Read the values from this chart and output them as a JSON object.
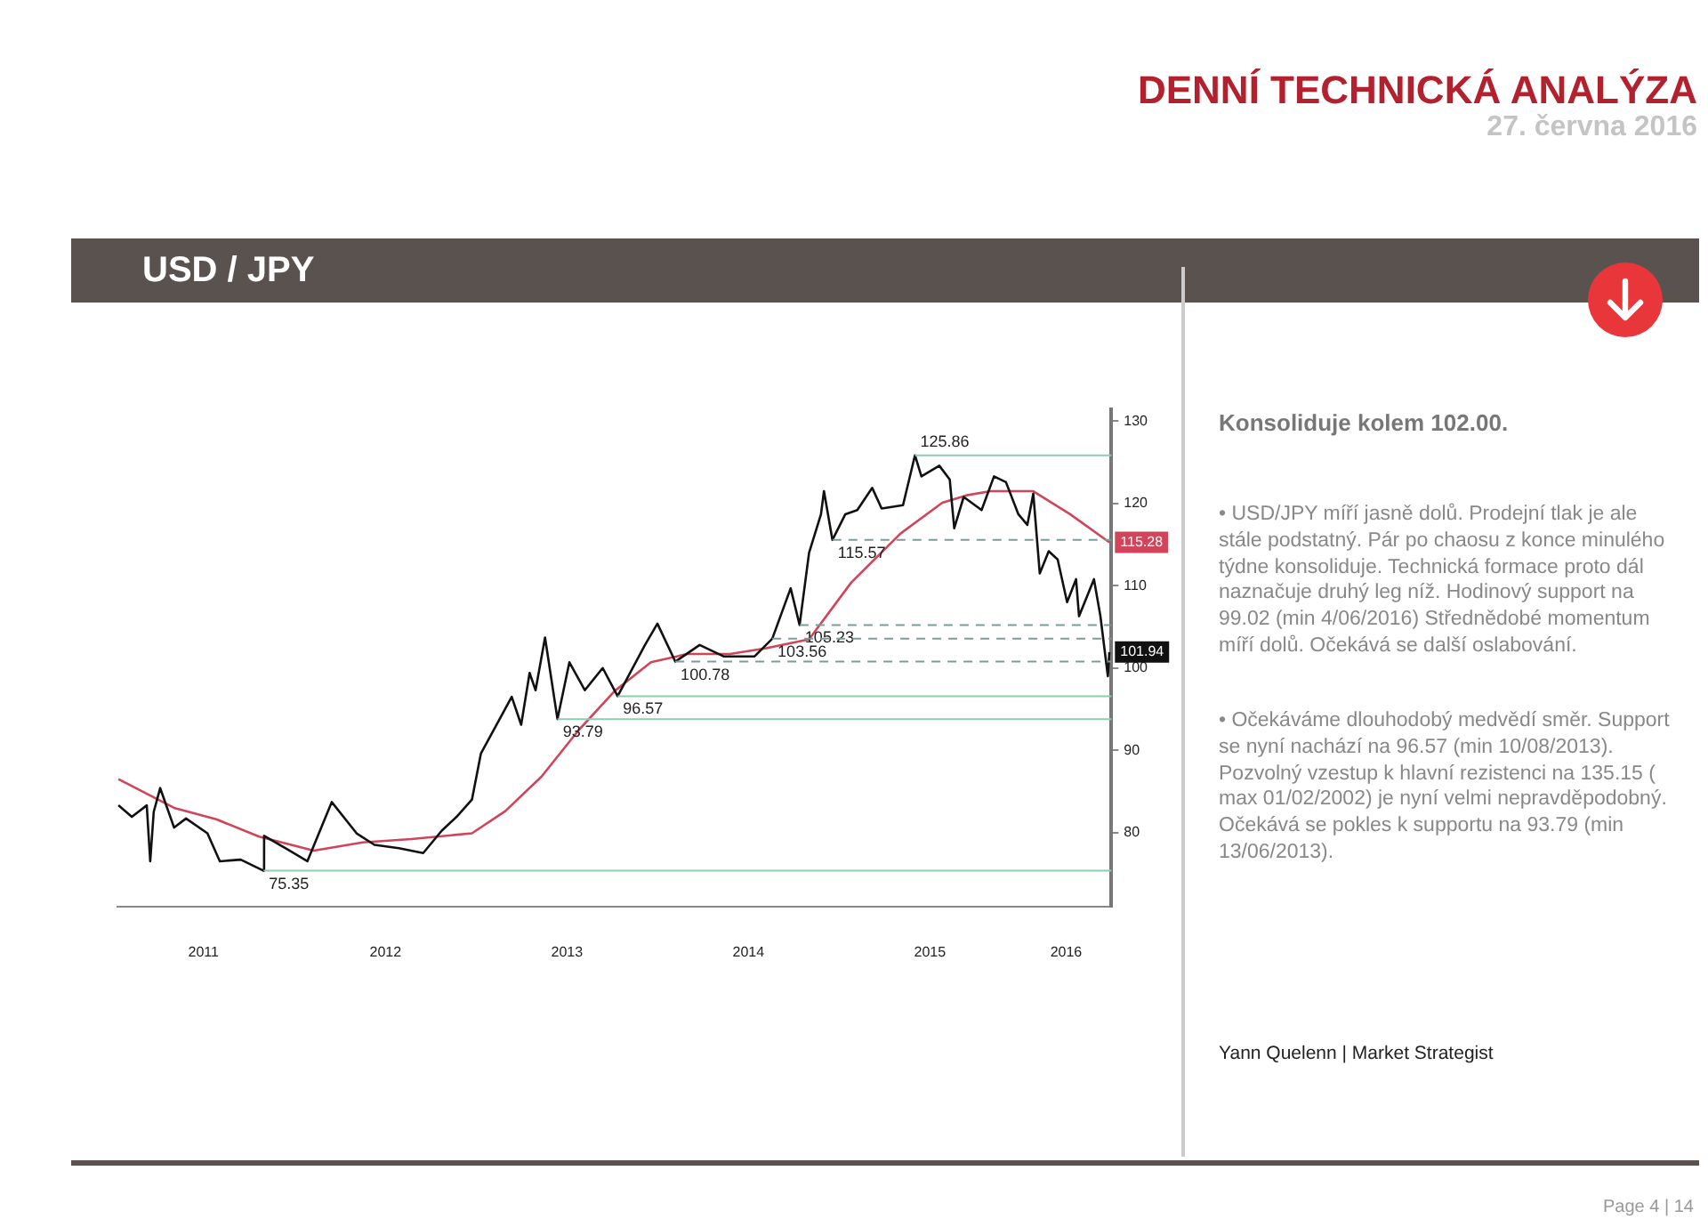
{
  "chart_data": {
    "type": "line",
    "title": "DENNÍ TECHNICKÁ ANALÝZA",
    "subtitle": "27. června 2016",
    "annotations": [
      "USD / JPY",
      "Konsoliduje kolem 102.00.",
      "• USD/JPY míří jasně dolů. Prodejní tlak je ale stále podstatný. Pár po chaosu z konce minulého týdne konsoliduje. Technická formace proto dál naznačuje druhý leg níž. Hodinový support na 99.02 (min 4/06/2016) Střednědobé momentum míří dolů. Očekává se další oslabování.",
      "• Očekáváme dlouhodobý medvědí směr. Support se nyní nachází na 96.57 (min 10/08/2013). Pozvolný vzestup k hlavní rezistenci na 135.15 ( max 01/02/2002) je nyní velmi nepravděpodobný. Očekává se pokles k supportu na 93.79 (min 13/06/2013).",
      "Yann Quelenn | Market Strategist",
      "Page 4 | 14"
    ],
    "xlim": [
      "2011-01-10",
      "2016-07-01"
    ],
    "xticks": [
      {
        "value": "2011-07-02",
        "label": "2011"
      },
      {
        "value": "2012-07-02",
        "label": "2012"
      },
      {
        "value": "2013-07-02",
        "label": "2013"
      },
      {
        "value": "2014-07-02",
        "label": "2014"
      },
      {
        "value": "2015-07-02",
        "label": "2015"
      },
      {
        "value": "2016-04-01",
        "label": "2016"
      }
    ],
    "ylim": [
      71,
      131.5
    ],
    "yticks": [
      80,
      90,
      100,
      110,
      120,
      130
    ],
    "legend": false,
    "marker": "none",
    "line_style": "solid",
    "series": [
      {
        "color": "#111111",
        "x": [
          "2011-01-12",
          "2011-02-08",
          "2011-03-10",
          "2011-03-17",
          "2011-03-24",
          "2011-04-06",
          "2011-05-04",
          "2011-05-28",
          "2011-07-10",
          "2011-08-04",
          "2011-09-15",
          "2011-10-31",
          "2011-11-01",
          "2011-12-22",
          "2012-01-27",
          "2012-03-16",
          "2012-05-05",
          "2012-06-10",
          "2012-07-29",
          "2012-09-16",
          "2012-10-23",
          "2012-11-22",
          "2012-12-23",
          "2013-01-10",
          "2013-02-16",
          "2013-03-13",
          "2013-04-01",
          "2013-04-18",
          "2013-04-30",
          "2013-05-19",
          "2013-06-13",
          "2013-07-07",
          "2013-08-07",
          "2013-09-12",
          "2013-10-12",
          "2013-12-06",
          "2013-12-31",
          "2014-02-05",
          "2014-03-26",
          "2014-05-14",
          "2014-07-14",
          "2014-08-19",
          "2014-09-25",
          "2014-10-13",
          "2014-11-01",
          "2014-11-25",
          "2014-12-01",
          "2014-12-18",
          "2015-01-13",
          "2015-02-06",
          "2015-03-08",
          "2015-03-27",
          "2015-05-09",
          "2015-06-02",
          "2015-06-15",
          "2015-07-21",
          "2015-08-11",
          "2015-08-20",
          "2015-09-08",
          "2015-10-14",
          "2015-11-08",
          "2015-12-02",
          "2015-12-27",
          "2016-01-14",
          "2016-01-26",
          "2016-02-08",
          "2016-02-26",
          "2016-03-15",
          "2016-04-03",
          "2016-04-21",
          "2016-04-27",
          "2016-05-27",
          "2016-06-09",
          "2016-06-24",
          "2016-06-27"
        ],
        "values": [
          83.3,
          81.9,
          83.3,
          76.5,
          82.5,
          85.4,
          80.6,
          81.7,
          79.9,
          76.5,
          76.7,
          75.35,
          79.6,
          77.8,
          76.5,
          83.7,
          79.9,
          78.5,
          78.1,
          77.5,
          80.2,
          81.9,
          84.0,
          89.6,
          93.7,
          96.5,
          93.1,
          99.4,
          97.3,
          103.7,
          93.79,
          100.7,
          97.3,
          100.0,
          96.57,
          102.8,
          105.4,
          100.78,
          102.8,
          101.4,
          101.4,
          103.56,
          109.7,
          105.23,
          114.0,
          118.7,
          121.5,
          115.57,
          118.7,
          119.2,
          121.9,
          119.4,
          119.8,
          125.86,
          123.3,
          124.6,
          122.9,
          117.0,
          120.8,
          119.2,
          123.3,
          122.6,
          118.7,
          117.4,
          121.2,
          111.5,
          114.2,
          113.2,
          108.0,
          110.8,
          106.3,
          110.8,
          106.3,
          99.0,
          101.94
        ],
        "value_labels": [
          null,
          null,
          null,
          null,
          null,
          null,
          null,
          null,
          null,
          null,
          null,
          null,
          null,
          null,
          null,
          null,
          null,
          null,
          null,
          null,
          null,
          null,
          null,
          null,
          null,
          null,
          null,
          null,
          null,
          null,
          null,
          null,
          null,
          null,
          null,
          null,
          null,
          null,
          null,
          null,
          null,
          null,
          null,
          null,
          null,
          null,
          null,
          null,
          null,
          null,
          null,
          null,
          null,
          null,
          null,
          null,
          null,
          null,
          null,
          null,
          null,
          null,
          null,
          null,
          null,
          null,
          null,
          null,
          null,
          null,
          null,
          null,
          null,
          null,
          "101.94"
        ]
      },
      {
        "color": "#d0455a",
        "x": [
          "2011-01-12",
          "2011-05-04",
          "2011-07-28",
          "2011-10-22",
          "2012-02-09",
          "2012-05-17",
          "2012-08-23",
          "2012-12-23",
          "2013-02-28",
          "2013-05-12",
          "2013-07-25",
          "2013-10-06",
          "2013-12-18",
          "2014-03-01",
          "2014-05-26",
          "2014-08-07",
          "2014-11-01",
          "2015-01-25",
          "2015-05-03",
          "2015-07-27",
          "2015-09-14",
          "2015-11-01",
          "2016-01-26",
          "2016-04-09",
          "2016-06-27"
        ],
        "values": [
          86.5,
          83.0,
          81.6,
          79.5,
          77.8,
          78.8,
          79.2,
          79.9,
          82.6,
          86.8,
          92.4,
          97.2,
          100.7,
          101.7,
          101.7,
          102.4,
          103.5,
          110.4,
          116.3,
          120.1,
          121.0,
          121.5,
          121.5,
          118.7,
          115.28
        ],
        "value_labels": [
          null,
          null,
          null,
          null,
          null,
          null,
          null,
          null,
          null,
          null,
          null,
          null,
          null,
          null,
          null,
          null,
          null,
          null,
          null,
          null,
          null,
          null,
          null,
          null,
          "115.28"
        ]
      }
    ],
    "ref_lines": [
      {
        "axis": "y",
        "value": 125.86,
        "label": "125.86",
        "color": "#8ccdb0",
        "line_style": "solid"
      },
      {
        "axis": "y",
        "value": 115.57,
        "label": "115.57",
        "color": "#7f9a9a",
        "line_style": "dashed"
      },
      {
        "axis": "y",
        "value": 105.23,
        "label": "105.23",
        "color": "#7f9a9a",
        "line_style": "dashed"
      },
      {
        "axis": "y",
        "value": 103.56,
        "label": "103.56",
        "color": "#7f9a9a",
        "line_style": "dashed"
      },
      {
        "axis": "y",
        "value": 100.78,
        "label": "100.78",
        "color": "#7f9a9a",
        "line_style": "dashed"
      },
      {
        "axis": "y",
        "value": 96.57,
        "label": "96.57",
        "color": "#8ccdb0",
        "line_style": "solid"
      },
      {
        "axis": "y",
        "value": 93.79,
        "label": "93.79",
        "color": "#8ccdb0",
        "line_style": "solid"
      },
      {
        "axis": "y",
        "value": 75.35,
        "label": "75.35",
        "color": "#8ccdb0",
        "line_style": "solid"
      }
    ]
  }
}
